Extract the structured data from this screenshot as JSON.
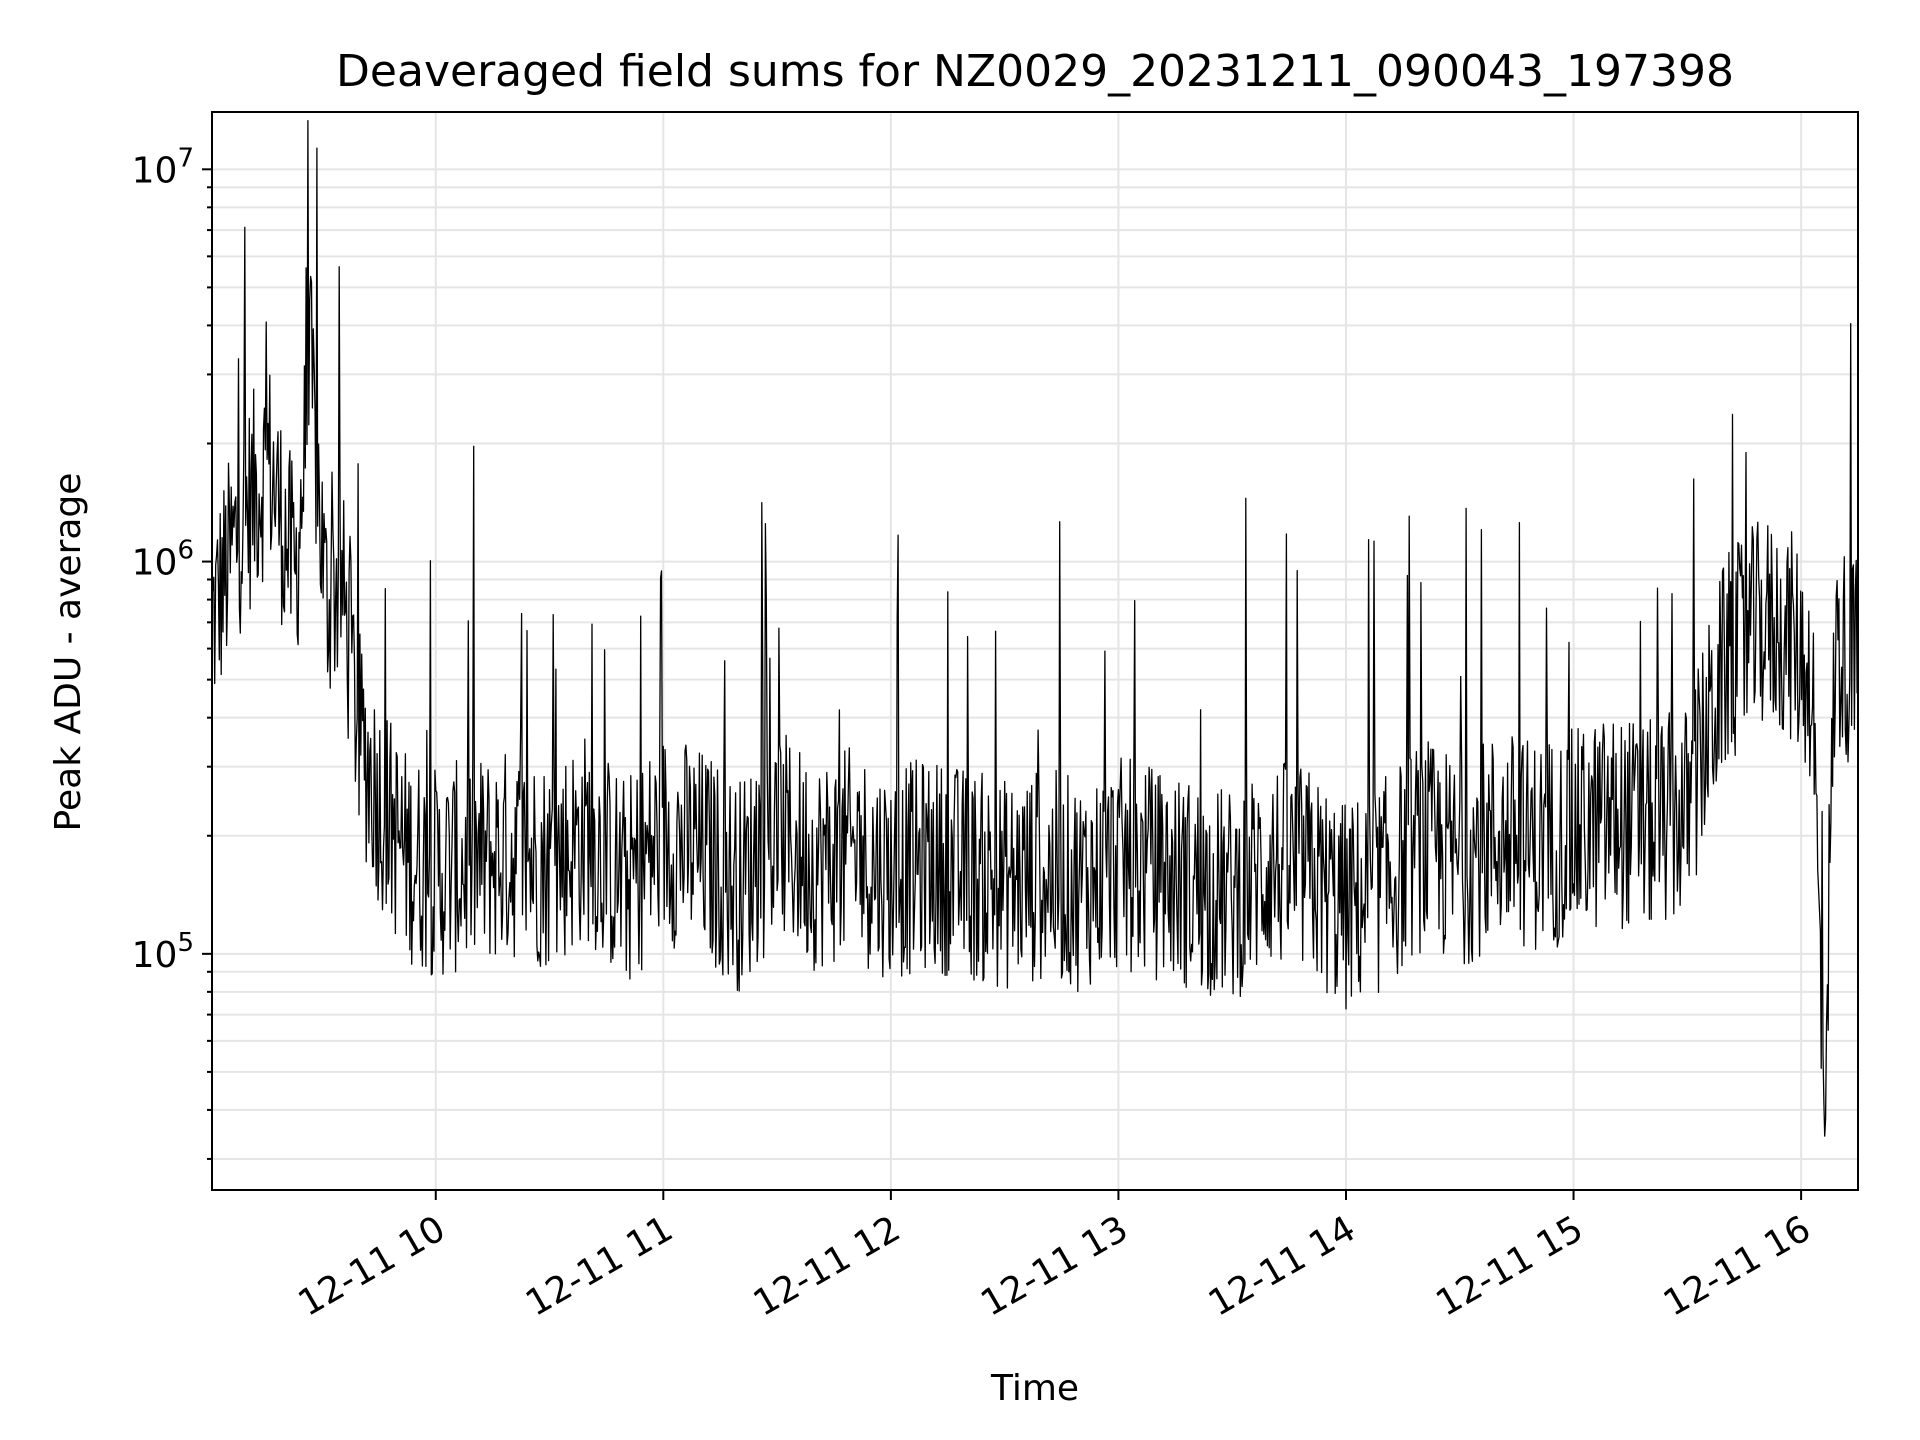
{
  "chart_data": {
    "type": "line",
    "title": "Deaveraged field sums for NZ0029_20231211_090043_197398",
    "xlabel": "Time",
    "ylabel": "Peak ADU - average",
    "yscale": "log",
    "ylim": [
      25000,
      14000000
    ],
    "xlim": [
      "2023-12-11 09:01",
      "2023-12-11 16:15"
    ],
    "grid": true,
    "line_color": "#000000",
    "grid_color": "#e5e5e5",
    "x_ticks": [
      {
        "x": "2023-12-11 10:00",
        "label": "12-11 10"
      },
      {
        "x": "2023-12-11 11:00",
        "label": "12-11 11"
      },
      {
        "x": "2023-12-11 12:00",
        "label": "12-11 12"
      },
      {
        "x": "2023-12-11 13:00",
        "label": "12-11 13"
      },
      {
        "x": "2023-12-11 14:00",
        "label": "12-11 14"
      },
      {
        "x": "2023-12-11 15:00",
        "label": "12-11 15"
      },
      {
        "x": "2023-12-11 16:00",
        "label": "12-11 16"
      }
    ],
    "y_ticks": [
      {
        "y": 100000,
        "base": "10",
        "exp": "5"
      },
      {
        "y": 1000000,
        "base": "10",
        "exp": "6"
      },
      {
        "y": 10000000,
        "base": "10",
        "exp": "7"
      }
    ],
    "series": [
      {
        "x": [
          "2023-12-11 09:01",
          "2023-12-11 09:08",
          "2023-12-11 09:16",
          "2023-12-11 09:23",
          "2023-12-11 09:27",
          "2023-12-11 09:31",
          "2023-12-11 09:35",
          "2023-12-11 09:40",
          "2023-12-11 09:45",
          "2023-12-11 09:52",
          "2023-12-11 10:00",
          "2023-12-11 10:10",
          "2023-12-11 10:20",
          "2023-12-11 10:30",
          "2023-12-11 10:40",
          "2023-12-11 10:50",
          "2023-12-11 11:00",
          "2023-12-11 11:10",
          "2023-12-11 11:20",
          "2023-12-11 11:30",
          "2023-12-11 11:40",
          "2023-12-11 11:50",
          "2023-12-11 12:00",
          "2023-12-11 12:10",
          "2023-12-11 12:20",
          "2023-12-11 12:30",
          "2023-12-11 12:40",
          "2023-12-11 12:50",
          "2023-12-11 13:00",
          "2023-12-11 13:10",
          "2023-12-11 13:20",
          "2023-12-11 13:30",
          "2023-12-11 13:40",
          "2023-12-11 13:50",
          "2023-12-11 14:00",
          "2023-12-11 14:10",
          "2023-12-11 14:20",
          "2023-12-11 14:30",
          "2023-12-11 14:40",
          "2023-12-11 14:50",
          "2023-12-11 15:00",
          "2023-12-11 15:10",
          "2023-12-11 15:20",
          "2023-12-11 15:30",
          "2023-12-11 15:40",
          "2023-12-11 15:50",
          "2023-12-11 15:57",
          "2023-12-11 16:03",
          "2023-12-11 16:06",
          "2023-12-11 16:09",
          "2023-12-11 16:15"
        ],
        "values": [
          700000,
          1200000,
          1800000,
          900000,
          3000000,
          800000,
          900000,
          350000,
          250000,
          180000,
          160000,
          170000,
          180000,
          170000,
          200000,
          150000,
          200000,
          180000,
          150000,
          200000,
          170000,
          180000,
          160000,
          170000,
          160000,
          150000,
          160000,
          150000,
          170000,
          160000,
          150000,
          140000,
          170000,
          160000,
          130000,
          150000,
          190000,
          170000,
          200000,
          190000,
          200000,
          220000,
          210000,
          230000,
          550000,
          700000,
          650000,
          500000,
          40000,
          600000,
          550000
        ]
      }
    ]
  }
}
